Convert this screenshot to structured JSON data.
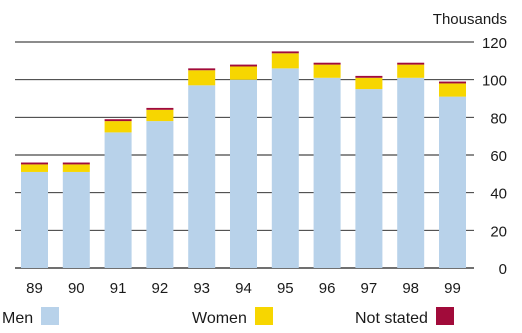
{
  "chart_data": {
    "type": "bar",
    "stacked": true,
    "unit_label": "Thousands",
    "categories": [
      "89",
      "90",
      "91",
      "92",
      "93",
      "94",
      "95",
      "96",
      "97",
      "98",
      "99"
    ],
    "series": [
      {
        "name": "Men",
        "color": "#b8d2ea",
        "values": [
          51,
          51,
          72,
          78,
          97,
          100,
          106,
          101,
          95,
          101,
          91
        ]
      },
      {
        "name": "Women",
        "color": "#f7d600",
        "values": [
          4,
          4,
          6,
          6,
          8,
          7,
          8,
          7,
          6,
          7,
          7
        ]
      },
      {
        "name": "Not stated",
        "color": "#a10b3a",
        "values": [
          1,
          1,
          1,
          1,
          1,
          1,
          1,
          1,
          1,
          1,
          1
        ]
      }
    ],
    "yticks": [
      0,
      20,
      40,
      60,
      80,
      100,
      120
    ],
    "ylim": [
      0,
      120
    ],
    "grid": true,
    "legend": "bottom"
  }
}
